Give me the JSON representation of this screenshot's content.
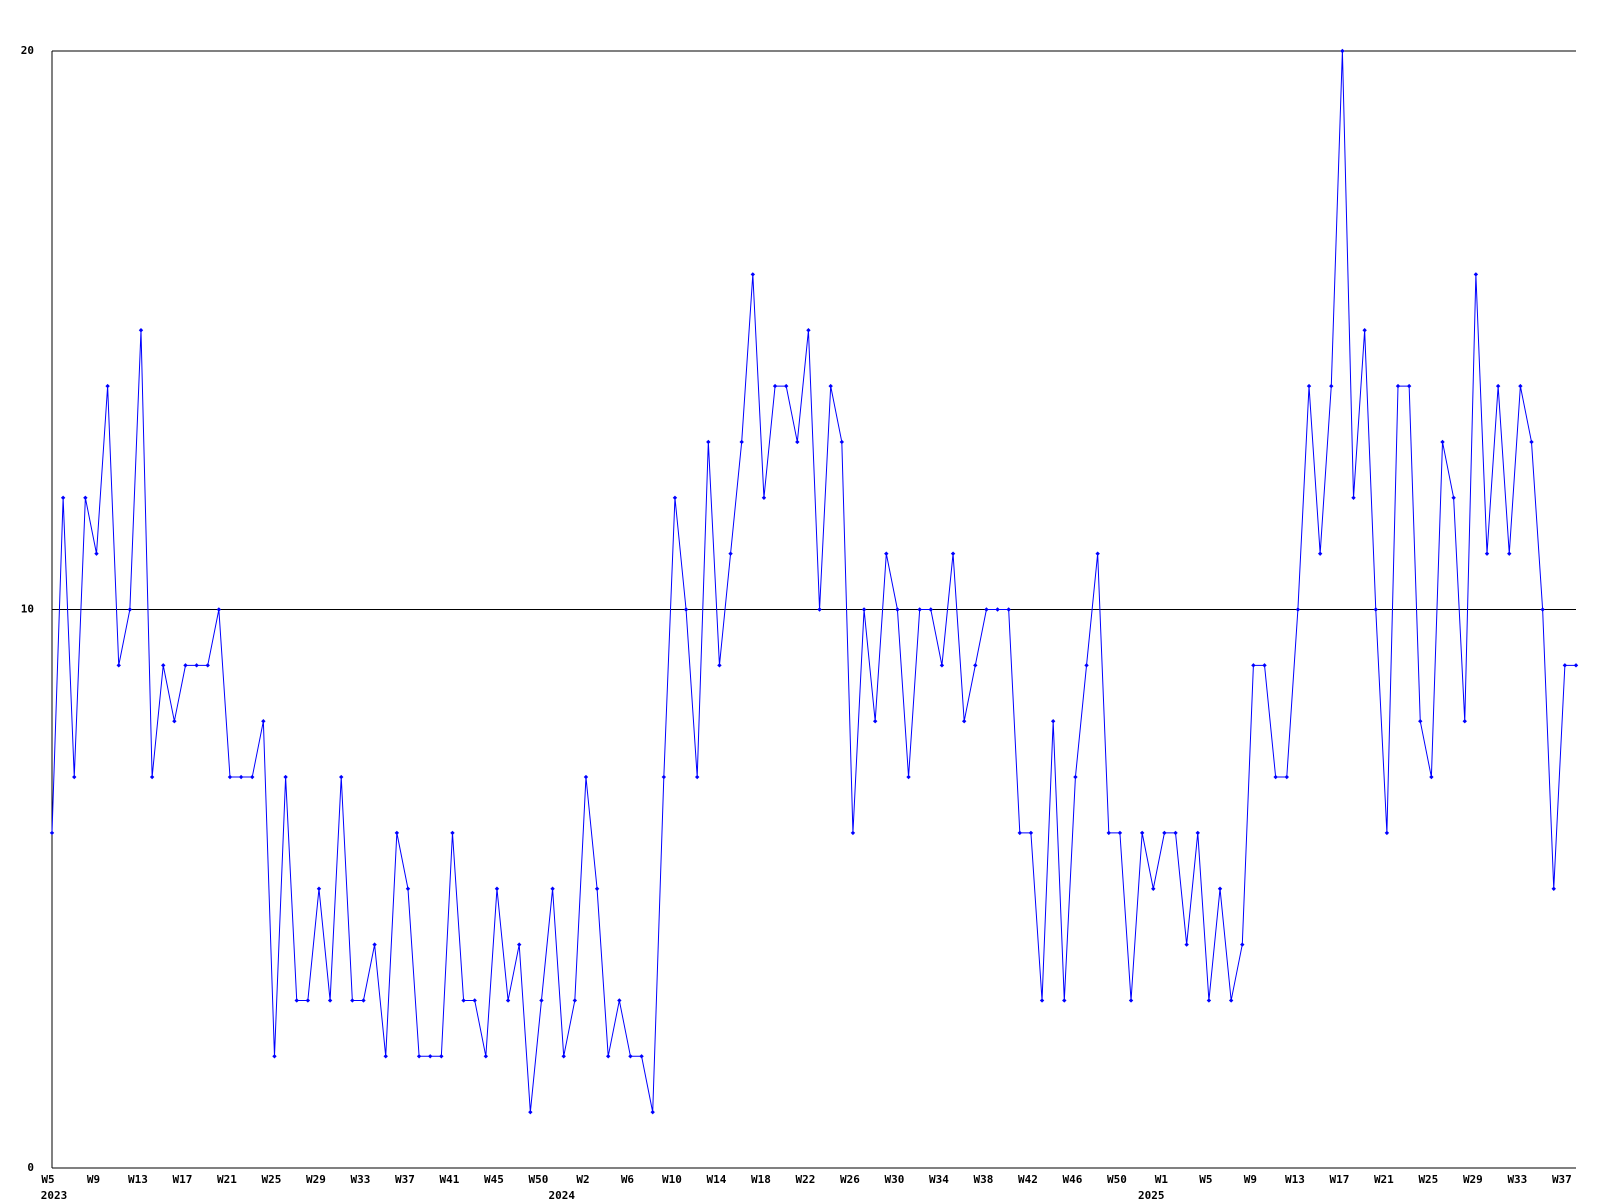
{
  "chart_data": {
    "type": "line",
    "categories": [
      "W5",
      null,
      null,
      null,
      "W9",
      null,
      null,
      null,
      "W13",
      null,
      null,
      null,
      "W17",
      null,
      null,
      null,
      "W21",
      null,
      null,
      null,
      "W25",
      null,
      null,
      null,
      "W29",
      null,
      null,
      null,
      "W33",
      null,
      null,
      null,
      "W37",
      null,
      null,
      null,
      "W41",
      null,
      null,
      null,
      "W45",
      null,
      null,
      null,
      "W50",
      null,
      null,
      null,
      "W2",
      null,
      null,
      null,
      "W6",
      null,
      null,
      null,
      "W10",
      null,
      null,
      null,
      "W14",
      null,
      null,
      null,
      "W18",
      null,
      null,
      null,
      "W22",
      null,
      null,
      null,
      "W26",
      null,
      null,
      null,
      "W30",
      null,
      null,
      null,
      "W34",
      null,
      null,
      null,
      "W38",
      null,
      null,
      null,
      "W42",
      null,
      null,
      null,
      "W46",
      null,
      null,
      null,
      "W50",
      null,
      null,
      null,
      "W1",
      null,
      null,
      null,
      "W5",
      null,
      null,
      null,
      "W9",
      null,
      null,
      null,
      "W13",
      null,
      null,
      null,
      "W17",
      null,
      null,
      null,
      "W21",
      null,
      null,
      null,
      "W25",
      null,
      null,
      null,
      "W29",
      null,
      null,
      null,
      "W33",
      null,
      null,
      null,
      "W37",
      null
    ],
    "year_labels": [
      "2023",
      "2024",
      "2025"
    ],
    "values": [
      6,
      12,
      7,
      12,
      11,
      14,
      9,
      10,
      15,
      7,
      9,
      8,
      9,
      9,
      9,
      10,
      7,
      7,
      7,
      8,
      2,
      7,
      3,
      3,
      5,
      3,
      7,
      3,
      3,
      4,
      2,
      6,
      5,
      2,
      2,
      2,
      6,
      3,
      3,
      2,
      5,
      3,
      4,
      1,
      3,
      5,
      2,
      3,
      7,
      5,
      2,
      3,
      2,
      2,
      1,
      7,
      12,
      10,
      7,
      13,
      9,
      11,
      13,
      16,
      12,
      14,
      14,
      13,
      15,
      10,
      14,
      13,
      6,
      10,
      8,
      11,
      10,
      7,
      10,
      10,
      9,
      11,
      8,
      9,
      10,
      10,
      10,
      6,
      6,
      3,
      8,
      3,
      7,
      9,
      11,
      6,
      6,
      3,
      6,
      5,
      6,
      6,
      4,
      6,
      3,
      5,
      3,
      4,
      9,
      9,
      7,
      7,
      10,
      14,
      11,
      14,
      20,
      12,
      15,
      10,
      6,
      14,
      14,
      8,
      7,
      13,
      12,
      8,
      16,
      11,
      14,
      11,
      14,
      13,
      10,
      5,
      9,
      9
    ],
    "color": "#0000ff",
    "ylim": [
      0,
      20
    ],
    "yticks": [
      0,
      10,
      20
    ],
    "grid": true
  }
}
